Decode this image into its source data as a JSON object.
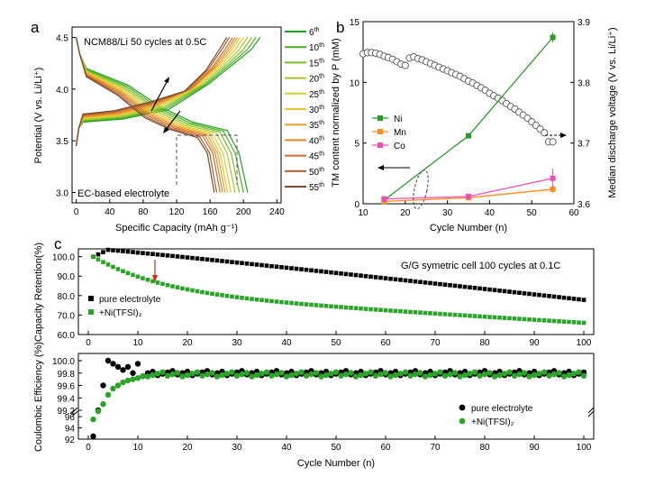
{
  "chart_data": [
    {
      "id": "a",
      "type": "line",
      "panel_label": "a",
      "title": "NCM88/Li 50 cycles at 0.5C",
      "annotation": "EC-based electrolyte",
      "xlabel": "Specific Capacity (mAh g⁻¹)",
      "ylabel": "Potential (V vs. Li/Li⁺)",
      "xlim": [
        -5,
        245
      ],
      "ylim": [
        2.9,
        4.6
      ],
      "xticks": [
        "0",
        "40",
        "80",
        "120",
        "160",
        "200",
        "240"
      ],
      "yticks": [
        "3.0",
        "3.5",
        "4.0",
        "4.5"
      ],
      "legend_sup": "th",
      "series": [
        {
          "name": "6",
          "color": "#1fa11f",
          "cap": 220
        },
        {
          "name": "10",
          "color": "#48ad24",
          "cap": 215
        },
        {
          "name": "15",
          "color": "#79bb28",
          "cap": 210
        },
        {
          "name": "20",
          "color": "#a6c82c",
          "cap": 205
        },
        {
          "name": "25",
          "color": "#d1d22e",
          "cap": 200
        },
        {
          "name": "30",
          "color": "#e8c22f",
          "cap": 196
        },
        {
          "name": "35",
          "color": "#eba02e",
          "cap": 193
        },
        {
          "name": "40",
          "color": "#e6862d",
          "cap": 190
        },
        {
          "name": "45",
          "color": "#cc6f2d",
          "cap": 187
        },
        {
          "name": "50",
          "color": "#a25f31",
          "cap": 183
        },
        {
          "name": "55",
          "color": "#7a4b2c",
          "cap": 180
        }
      ]
    },
    {
      "id": "b",
      "type": "line",
      "panel_label": "b",
      "xlabel": "Cycle Number (n)",
      "ylabel_left": "TM content normalized by P (mM)",
      "ylabel_right": "Median discharge voltage (V vs. Li/Li⁺)",
      "xlim": [
        10,
        60
      ],
      "ylim_left": [
        0,
        15
      ],
      "ylim_right": [
        3.6,
        3.9
      ],
      "xticks": [
        "10",
        "20",
        "30",
        "40",
        "50",
        "60"
      ],
      "yticks_left": [
        "0",
        "5",
        "10",
        "15"
      ],
      "yticks_right": [
        "3.6",
        "3.7",
        "3.8",
        "3.9"
      ],
      "series": [
        {
          "name": "Ni",
          "color": "#2a9a2a",
          "marker": "square",
          "x": [
            15,
            35,
            55
          ],
          "y": [
            0.3,
            5.6,
            13.7
          ],
          "err": [
            0.2,
            0.2,
            0.4
          ]
        },
        {
          "name": "Mn",
          "color": "#ff8c1a",
          "marker": "square",
          "x": [
            15,
            35,
            55
          ],
          "y": [
            0.2,
            0.5,
            1.2
          ],
          "err": [
            0.1,
            0.1,
            0.3
          ]
        },
        {
          "name": "Co",
          "color": "#ee4fb5",
          "marker": "square",
          "x": [
            15,
            35,
            55
          ],
          "y": [
            0.4,
            0.6,
            2.1
          ],
          "err": [
            0.1,
            0.1,
            0.8
          ]
        }
      ],
      "median_voltage": {
        "name": "Median discharge voltage",
        "x": [
          10,
          11,
          12,
          13,
          14,
          15,
          16,
          17,
          18,
          19,
          20,
          21,
          22,
          23,
          24,
          25,
          26,
          27,
          28,
          29,
          30,
          31,
          32,
          33,
          34,
          35,
          36,
          37,
          38,
          39,
          40,
          41,
          42,
          43,
          44,
          45,
          46,
          47,
          48,
          49,
          50,
          51,
          52,
          53,
          54,
          55
        ],
        "y": [
          3.847,
          3.849,
          3.849,
          3.848,
          3.846,
          3.843,
          3.841,
          3.838,
          3.834,
          3.83,
          3.828,
          3.84,
          3.842,
          3.839,
          3.837,
          3.834,
          3.831,
          3.828,
          3.825,
          3.822,
          3.819,
          3.816,
          3.813,
          3.81,
          3.806,
          3.802,
          3.799,
          3.795,
          3.791,
          3.787,
          3.782,
          3.778,
          3.774,
          3.77,
          3.765,
          3.76,
          3.756,
          3.751,
          3.746,
          3.741,
          3.735,
          3.729,
          3.723,
          3.717,
          3.702,
          3.702
        ]
      }
    },
    {
      "id": "c",
      "type": "scatter",
      "panel_label": "c",
      "title": "G/G symetric cell 100 cycles at 0.1C",
      "xlabel": "Cycle Number (n)",
      "top": {
        "ylabel": "Capacity Retention(%)",
        "ylim": [
          60,
          104
        ],
        "yticks": [
          "60.0",
          "70.0",
          "80.0",
          "90.0",
          "100.0"
        ],
        "xticks": [
          "0",
          "10",
          "20",
          "30",
          "40",
          "50",
          "60",
          "70",
          "80",
          "90",
          "100"
        ],
        "series": [
          {
            "name": "pure electrolyte",
            "color": "#000000",
            "start": 100,
            "peak": 103.5,
            "end": 77.8
          },
          {
            "name": "+Ni(TFSI)₂",
            "color": "#2aa52a",
            "start": 100,
            "end": 66.0
          }
        ],
        "arrow_cycle": 15
      },
      "bottom": {
        "ylabel": "Coulombic Efficiency (%)",
        "yticks": [
          "92",
          "94",
          "96",
          "99.2",
          "99.4",
          "99.6",
          "99.8",
          "100.0"
        ],
        "xticks": [
          "0",
          "10",
          "20",
          "30",
          "40",
          "50",
          "60",
          "70",
          "80",
          "90",
          "100"
        ],
        "series": [
          {
            "name": "pure electrolyte",
            "color": "#000000",
            "early": [
              92.5,
              99.2,
              99.6,
              100.0,
              99.95,
              99.9,
              99.85,
              99.9,
              99.8,
              99.95,
              99.75
            ],
            "plateau": 99.8
          },
          {
            "name": "+Ni(TFSI)₂",
            "color": "#2aa52a",
            "early": [
              95.5,
              98.5,
              99.3,
              99.45,
              99.55,
              99.6,
              99.65,
              99.68,
              99.7,
              99.72,
              99.75
            ],
            "plateau": 99.78
          }
        ]
      }
    }
  ]
}
